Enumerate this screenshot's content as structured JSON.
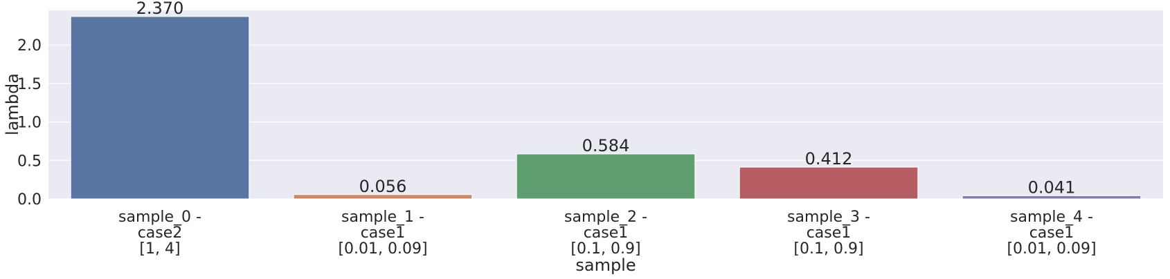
{
  "chart_data": {
    "type": "bar",
    "xlabel": "sample",
    "ylabel": "lambda",
    "ylim": [
      0,
      2.45
    ],
    "yticks": [
      "0.0",
      "0.5",
      "1.0",
      "1.5",
      "2.0"
    ],
    "grid": true,
    "categories": [
      [
        "sample_0 -",
        "case2",
        "[1, 4]"
      ],
      [
        "sample_1 -",
        "case1",
        "[0.01, 0.09]"
      ],
      [
        "sample_2 -",
        "case1",
        "[0.1, 0.9]"
      ],
      [
        "sample_3 -",
        "case1",
        "[0.1, 0.9]"
      ],
      [
        "sample_4 -",
        "case1",
        "[0.01, 0.09]"
      ]
    ],
    "values": [
      2.37,
      0.056,
      0.584,
      0.412,
      0.041
    ],
    "value_labels": [
      "2.370",
      "0.056",
      "0.584",
      "0.412",
      "0.041"
    ],
    "colors": [
      "#5875a4",
      "#cc8963",
      "#5f9e6e",
      "#b55d60",
      "#857aab"
    ],
    "background_color": "#eaeaf2"
  }
}
